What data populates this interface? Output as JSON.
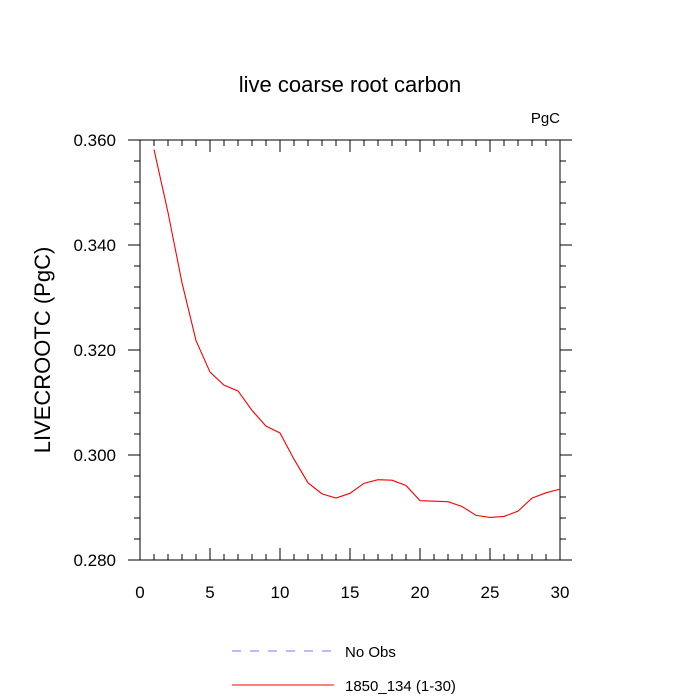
{
  "chart_data": {
    "type": "line",
    "title": "live coarse root carbon",
    "units_label": "PgC",
    "xlabel": "",
    "ylabel": "LIVECROOTC  (PgC)",
    "xlim": [
      0,
      30
    ],
    "ylim": [
      0.28,
      0.36
    ],
    "x_ticks": [
      0,
      5,
      10,
      15,
      20,
      25,
      30
    ],
    "x_tick_labels": [
      "0",
      "5",
      "10",
      "15",
      "20",
      "25",
      "30"
    ],
    "y_ticks": [
      0.28,
      0.3,
      0.32,
      0.34,
      0.36
    ],
    "y_tick_labels": [
      "0.280",
      "0.300",
      "0.320",
      "0.340",
      "0.360"
    ],
    "series": [
      {
        "name": "No Obs",
        "color": "#7777ff",
        "dash": "dashed",
        "x": [],
        "y": []
      },
      {
        "name": "1850_134 (1-30)",
        "color": "#ff0000",
        "dash": "solid",
        "x": [
          1,
          2,
          3,
          4,
          5,
          6,
          7,
          8,
          9,
          10,
          11,
          12,
          13,
          14,
          15,
          16,
          17,
          18,
          19,
          20,
          21,
          22,
          23,
          24,
          25,
          26,
          27,
          28,
          29,
          30
        ],
        "y": [
          0.3582,
          0.3462,
          0.3328,
          0.3218,
          0.3158,
          0.3133,
          0.3122,
          0.3085,
          0.3055,
          0.3042,
          0.2992,
          0.2947,
          0.2926,
          0.2918,
          0.2927,
          0.2946,
          0.2953,
          0.2952,
          0.2942,
          0.2913,
          0.2912,
          0.2911,
          0.2902,
          0.2885,
          0.2881,
          0.2883,
          0.2893,
          0.2918,
          0.2928,
          0.2935
        ]
      }
    ],
    "legend": {
      "position": "bottom-center",
      "entries": [
        "No Obs",
        "1850_134 (1-30)"
      ]
    }
  }
}
